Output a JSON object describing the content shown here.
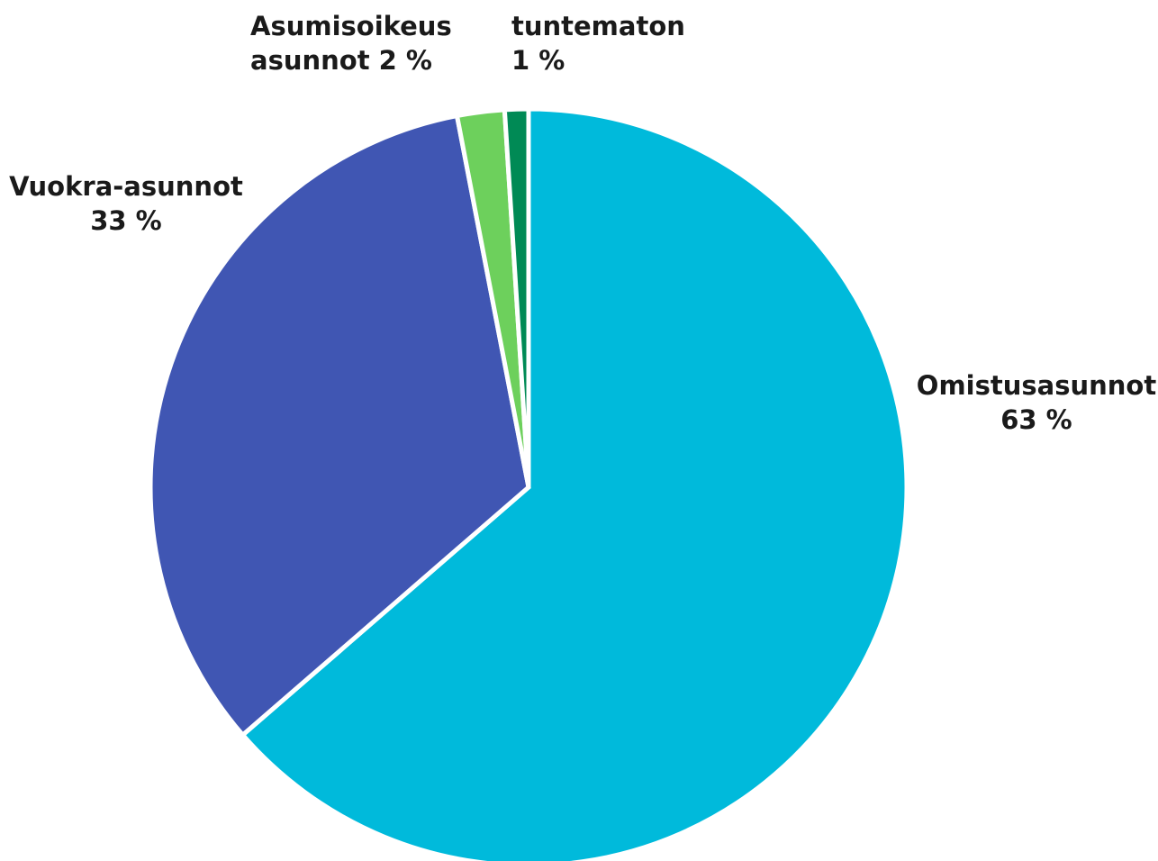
{
  "chart_data": {
    "type": "pie",
    "slices": [
      {
        "label": "Omistusasunnot",
        "value": 63,
        "value_text": "63 %",
        "color": "#00BADB"
      },
      {
        "label": "Vuokra-asunnot",
        "value": 33,
        "value_text": "33 %",
        "color": "#4056B3"
      },
      {
        "label": "Asumisoikeus asunnot",
        "value": 2,
        "value_text": "2 %",
        "color": "#6DD05C"
      },
      {
        "label": "tuntematon",
        "value": 1,
        "value_text": "1 %",
        "color": "#008A55"
      }
    ],
    "labels": {
      "omistus": {
        "line1": "Omistusasunnot",
        "line2": "63 %"
      },
      "vuokra": {
        "line1": "Vuokra-asunnot",
        "line2": "33 %"
      },
      "asumisoikeus": {
        "line1": "Asumisoikeus",
        "line2": "asunnot 2 %"
      },
      "tuntematon": {
        "line1": "tuntematon",
        "line2": "1 %"
      }
    }
  }
}
